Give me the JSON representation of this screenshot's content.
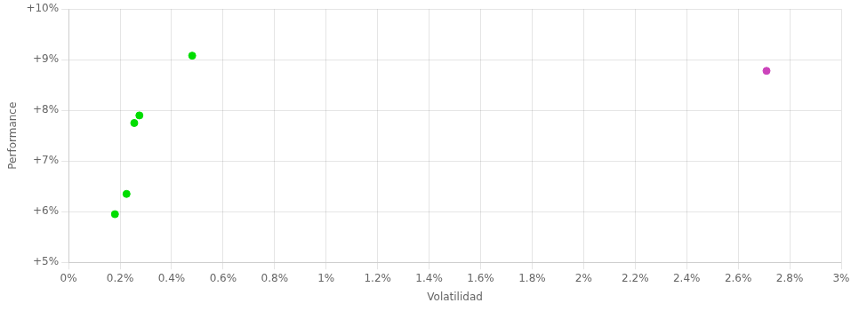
{
  "chart_data": {
    "type": "scatter",
    "x_label": "Volatilidad",
    "y_label": "Performance",
    "xlim": [
      0,
      0.03
    ],
    "ylim": [
      0.05,
      0.1
    ],
    "xticks": [
      {
        "value": 0.0,
        "label": "0%"
      },
      {
        "value": 0.002,
        "label": "0.2%"
      },
      {
        "value": 0.004,
        "label": "0.4%"
      },
      {
        "value": 0.006,
        "label": "0.6%"
      },
      {
        "value": 0.008,
        "label": "0.8%"
      },
      {
        "value": 0.01,
        "label": "1%"
      },
      {
        "value": 0.012,
        "label": "1.2%"
      },
      {
        "value": 0.014,
        "label": "1.4%"
      },
      {
        "value": 0.016,
        "label": "1.6%"
      },
      {
        "value": 0.018,
        "label": "1.8%"
      },
      {
        "value": 0.02,
        "label": "2%"
      },
      {
        "value": 0.022,
        "label": "2.2%"
      },
      {
        "value": 0.024,
        "label": "2.4%"
      },
      {
        "value": 0.026,
        "label": "2.6%"
      },
      {
        "value": 0.028,
        "label": "2.8%"
      },
      {
        "value": 0.03,
        "label": "3%"
      }
    ],
    "yticks": [
      {
        "value": 0.05,
        "label": "+5%"
      },
      {
        "value": 0.06,
        "label": "+6%"
      },
      {
        "value": 0.07,
        "label": "+7%"
      },
      {
        "value": 0.08,
        "label": "+8%"
      },
      {
        "value": 0.09,
        "label": "+9%"
      },
      {
        "value": 0.1,
        "label": "+10%"
      }
    ],
    "grid": true,
    "series": [
      {
        "color": "#00dd00",
        "x": [
          0.0018,
          0.00225,
          0.00255,
          0.00275,
          0.0048
        ],
        "values": [
          0.0595,
          0.0635,
          0.0775,
          0.079,
          0.0908
        ]
      },
      {
        "color": "#cc44bb",
        "x": [
          0.0271
        ],
        "values": [
          0.0878
        ]
      }
    ]
  }
}
